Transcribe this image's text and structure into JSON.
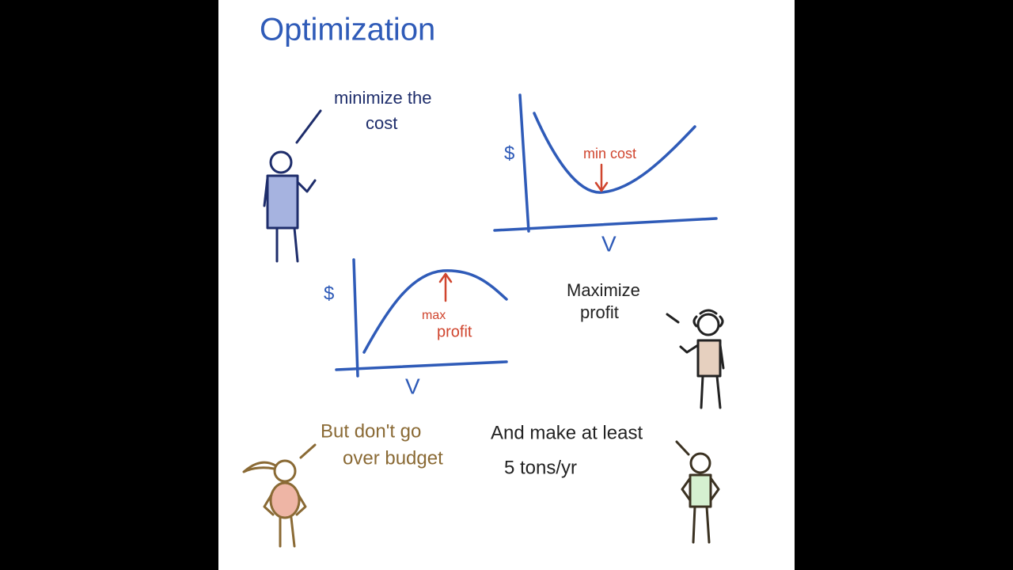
{
  "title": "Optimization",
  "cost_chart": {
    "y_label": "$",
    "x_label": "V",
    "annotation": "min cost"
  },
  "profit_chart": {
    "y_label": "$",
    "x_label": "V",
    "annotation": [
      "max",
      "profit"
    ]
  },
  "speakers": [
    {
      "speech": [
        "minimize the",
        "cost"
      ]
    },
    {
      "speech": [
        "Maximize",
        "profit"
      ]
    },
    {
      "speech": [
        "But don't go",
        "over budget"
      ]
    },
    {
      "speech": [
        "And make at least",
        "5 tons/yr"
      ]
    }
  ]
}
